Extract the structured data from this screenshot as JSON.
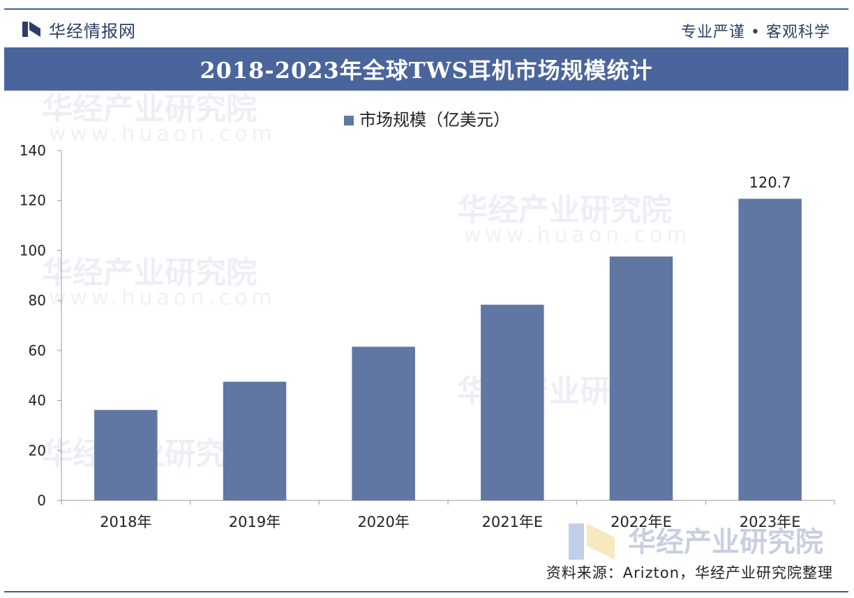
{
  "header": {
    "brand": "华经情报网",
    "tagline": "专业严谨 • 客观科学"
  },
  "chart_data": {
    "type": "bar",
    "title": "2018-2023年全球TWS耳机市场规模统计",
    "categories": [
      "2018年",
      "2019年",
      "2020年",
      "2021年E",
      "2022年E",
      "2023年E"
    ],
    "series": [
      {
        "name": "市场规模（亿美元）",
        "values": [
          36.2,
          47.5,
          61.5,
          78.3,
          97.6,
          120.7
        ]
      }
    ],
    "data_labels": [
      null,
      null,
      null,
      null,
      null,
      "120.7"
    ],
    "ylim": [
      0,
      140
    ],
    "yticks": [
      0,
      20,
      40,
      60,
      80,
      100,
      120,
      140
    ],
    "legend_position": "top-center",
    "grid": false,
    "bar_color": "#6077a3"
  },
  "footer": {
    "source": "资料来源：Arizton，华经产业研究院整理"
  },
  "watermark": {
    "cn": "华经产业研究院",
    "en": "www.huaon.com"
  }
}
